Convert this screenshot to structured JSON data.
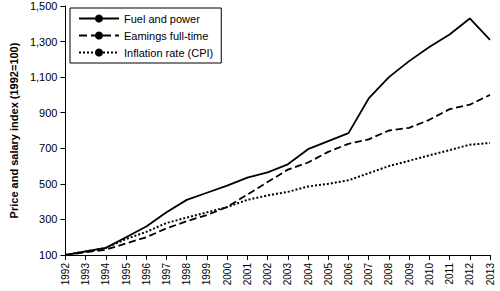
{
  "chart_data": {
    "type": "line",
    "y_label": "Price and salary index (1992=100)",
    "categories": [
      "1992",
      "1993",
      "1994",
      "1995",
      "1996",
      "1997",
      "1998",
      "1999",
      "2000",
      "2001",
      "2002",
      "2003",
      "2004",
      "2005",
      "2006",
      "2007",
      "2008",
      "2009",
      "2010",
      "2011",
      "2012",
      "2013"
    ],
    "series": [
      {
        "name": "Fuel and power",
        "color": "#000000",
        "line_style": "solid",
        "values": [
          100,
          120,
          140,
          200,
          260,
          340,
          410,
          450,
          490,
          535,
          565,
          610,
          695,
          740,
          785,
          980,
          1100,
          1190,
          1270,
          1340,
          1430,
          1310
        ]
      },
      {
        "name": "Eamings full-time",
        "color": "#000000",
        "line_style": "dashed",
        "values": [
          100,
          115,
          130,
          165,
          200,
          250,
          290,
          325,
          370,
          440,
          510,
          580,
          620,
          680,
          725,
          750,
          800,
          815,
          860,
          920,
          945,
          1000
        ]
      },
      {
        "name": "Inflation rate (CPI)",
        "color": "#000000",
        "line_style": "dotted",
        "values": [
          100,
          120,
          140,
          190,
          230,
          280,
          310,
          340,
          370,
          410,
          435,
          455,
          485,
          500,
          520,
          560,
          600,
          630,
          660,
          690,
          720,
          730
        ]
      }
    ],
    "ylim": [
      100,
      1500
    ],
    "yticks": [
      100,
      300,
      500,
      700,
      900,
      {
        "value": 1100,
        "label": "1,100"
      },
      {
        "value": 1300,
        "label": "1,300"
      },
      {
        "value": 1500,
        "label": "1,500"
      }
    ],
    "grid": false,
    "legend": "upper left"
  }
}
